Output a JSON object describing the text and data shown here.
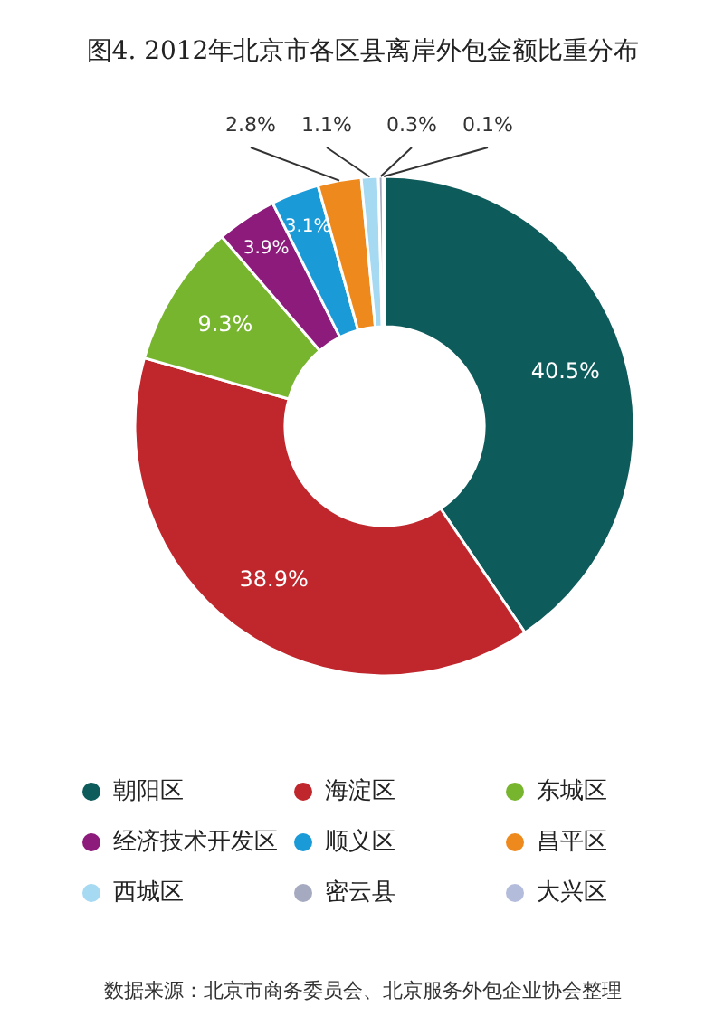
{
  "chart_data": {
    "type": "donut",
    "title": "图4. 2012年北京市各区县离岸外包金额比重分布",
    "categories": [
      "朝阳区",
      "海淀区",
      "东城区",
      "经济技术开发区",
      "顺义区",
      "昌平区",
      "西城区",
      "密云县",
      "大兴区"
    ],
    "values": [
      40.5,
      38.9,
      9.3,
      3.9,
      3.1,
      2.8,
      1.1,
      0.3,
      0.1
    ],
    "colors": [
      "#0e5b5c",
      "#c0272d",
      "#78b52f",
      "#8c1b7c",
      "#1b9ad8",
      "#ee8a1d",
      "#a6d9f2",
      "#a5aac0",
      "#b4bcdc"
    ],
    "value_labels": [
      "40.5%",
      "38.9%",
      "9.3%",
      "3.9%",
      "3.1%",
      "2.8%",
      "1.1%",
      "0.3%",
      "0.1%"
    ],
    "legend": "bottom",
    "annotations": [
      "数据来源：北京市商务委员会、北京服务外包企业协会整理"
    ]
  }
}
